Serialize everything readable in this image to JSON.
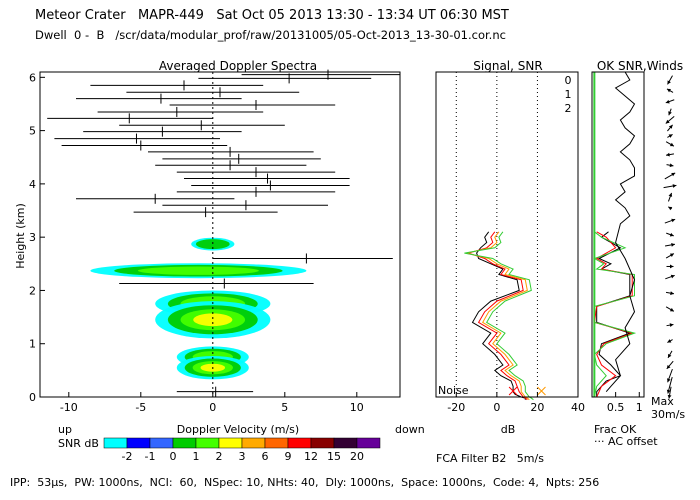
{
  "header": {
    "line1": "Meteor Crater   MAPR-449   Sat Oct 05 2013 13:30 - 13:34 UT 06:30 MST",
    "line2": "Dwell  0 -  B   /scr/data/modular_prof/raw/20131005/05-Oct-2013_13-30-01.cor.nc"
  },
  "footer": {
    "params": "IPP:  53μs,  PW: 1000ns,  NCI:  60,  NSpec: 10, NHts: 40,  Dly: 1000ns,  Space: 1000ns,  Code: 4,  Npts: 256",
    "filter": "FCA Filter B2   5m/s"
  },
  "colorbar": {
    "up": "up",
    "down": "down",
    "unit_label": "SNR dB",
    "ticks": [
      "-2",
      "-1",
      "0",
      "1",
      "2",
      "3",
      "6",
      "9",
      "12",
      "15",
      "20"
    ],
    "colors": [
      "#00ffff",
      "#0000ff",
      "#3366ff",
      "#00cc00",
      "#44ff00",
      "#ffff00",
      "#ffaa00",
      "#ff6600",
      "#ff0000",
      "#880000",
      "#330033",
      "#660099"
    ]
  },
  "chart_data": [
    {
      "type": "heatmap",
      "title": "Averaged Doppler Spectra",
      "xlabel": "Doppler Velocity (m/s)",
      "ylabel": "Height (km)",
      "xlim": [
        -12,
        13
      ],
      "ylim": [
        0,
        6.1
      ],
      "xticks": [
        -10,
        -5,
        0,
        5,
        10
      ],
      "yticks": [
        0,
        1,
        2,
        3,
        4,
        5,
        6
      ],
      "mean_velocity_bars": [
        {
          "h": 6.05,
          "v": 8.0,
          "lo": 2.0,
          "hi": 13.0
        },
        {
          "h": 5.98,
          "v": 5.3,
          "lo": -1.0,
          "hi": 11.0
        },
        {
          "h": 5.85,
          "v": -2.0,
          "lo": -8.5,
          "hi": 3.5
        },
        {
          "h": 5.72,
          "v": 0.5,
          "lo": -6.0,
          "hi": 6.0
        },
        {
          "h": 5.6,
          "v": -3.6,
          "lo": -9.5,
          "hi": 2.0
        },
        {
          "h": 5.48,
          "v": 3.0,
          "lo": -3.0,
          "hi": 8.5
        },
        {
          "h": 5.35,
          "v": -2.5,
          "lo": -8.0,
          "hi": 3.5
        },
        {
          "h": 5.23,
          "v": -5.8,
          "lo": -11.5,
          "hi": 0.0
        },
        {
          "h": 5.1,
          "v": -0.8,
          "lo": -6.5,
          "hi": 5.0
        },
        {
          "h": 4.98,
          "v": -3.5,
          "lo": -9.0,
          "hi": 2.0
        },
        {
          "h": 4.85,
          "v": -5.3,
          "lo": -11.0,
          "hi": 0.5
        },
        {
          "h": 4.72,
          "v": -5.0,
          "lo": -10.5,
          "hi": 1.0
        },
        {
          "h": 4.6,
          "v": 1.2,
          "lo": -4.5,
          "hi": 7.0
        },
        {
          "h": 4.47,
          "v": 1.8,
          "lo": -3.5,
          "hi": 7.5
        },
        {
          "h": 4.35,
          "v": 1.2,
          "lo": -4.0,
          "hi": 6.5
        },
        {
          "h": 4.22,
          "v": 3.0,
          "lo": -2.5,
          "hi": 8.5
        },
        {
          "h": 4.1,
          "v": 3.8,
          "lo": -2.0,
          "hi": 9.5
        },
        {
          "h": 3.97,
          "v": 4.0,
          "lo": -1.5,
          "hi": 9.5
        },
        {
          "h": 3.85,
          "v": 3.0,
          "lo": -2.5,
          "hi": 8.5
        },
        {
          "h": 3.72,
          "v": -4.0,
          "lo": -9.5,
          "hi": 1.5
        },
        {
          "h": 3.6,
          "v": 2.3,
          "lo": -3.5,
          "hi": 8.0
        },
        {
          "h": 3.47,
          "v": -0.5,
          "lo": -5.5,
          "hi": 4.5
        },
        {
          "h": 2.6,
          "v": 6.5,
          "lo": 0.0,
          "hi": 12.5
        },
        {
          "h": 2.13,
          "v": 0.8,
          "lo": -6.5,
          "hi": 7.0
        },
        {
          "h": 0.1,
          "v": 0.2,
          "lo": -2.5,
          "hi": 2.8
        }
      ],
      "echo_layers": [
        {
          "h": 2.87,
          "v": 0.0,
          "dh": 0.12,
          "dv": 1.5,
          "level": 1
        },
        {
          "h": 2.37,
          "v": -1.0,
          "dh": 0.14,
          "dv": 7.5,
          "level": 2
        },
        {
          "h": 1.75,
          "v": 0.0,
          "dh": 0.25,
          "dv": 4.0,
          "level": 2
        },
        {
          "h": 1.45,
          "v": 0.0,
          "dh": 0.35,
          "dv": 4.0,
          "level": 3
        },
        {
          "h": 0.75,
          "v": 0.0,
          "dh": 0.2,
          "dv": 2.5,
          "level": 2
        },
        {
          "h": 0.55,
          "v": 0.0,
          "dh": 0.22,
          "dv": 2.5,
          "level": 3
        }
      ]
    },
    {
      "type": "line",
      "title": "Signal, SNR",
      "xlabel": "dB",
      "xlim": [
        -30,
        40
      ],
      "xticks": [
        -20,
        0,
        20,
        40
      ],
      "noise_label": "Noise",
      "series": [
        {
          "name": "Signal",
          "color": "#000000",
          "x": [
            -4,
            -6,
            -5,
            -8,
            -10,
            -9,
            -3,
            3,
            1,
            10,
            11,
            -3,
            -9,
            -12,
            -3,
            -7,
            -1,
            3,
            -1,
            2,
            7,
            8,
            8,
            9,
            12,
            14,
            14
          ],
          "h": [
            3.1,
            3.0,
            2.9,
            2.8,
            2.7,
            2.6,
            2.5,
            2.4,
            2.3,
            2.2,
            2.0,
            1.8,
            1.6,
            1.4,
            1.2,
            1.0,
            0.8,
            0.6,
            0.5,
            0.4,
            0.3,
            0.2,
            0.1,
            0.05,
            0.0,
            -0.02,
            -0.05
          ]
        },
        {
          "name": "0",
          "color": "#ff0000",
          "x": [
            -1,
            -3,
            -2,
            -5,
            -14,
            -6,
            -2,
            4,
            2,
            12,
            13,
            0,
            -6,
            -9,
            0,
            -4,
            2,
            6,
            2,
            5,
            9,
            10,
            11,
            12,
            13,
            14,
            15
          ],
          "h": [
            3.1,
            3.0,
            2.9,
            2.8,
            2.7,
            2.6,
            2.5,
            2.4,
            2.3,
            2.2,
            2.0,
            1.8,
            1.6,
            1.4,
            1.2,
            1.0,
            0.8,
            0.6,
            0.5,
            0.4,
            0.3,
            0.2,
            0.1,
            0.05,
            0.0,
            -0.02,
            -0.05
          ]
        },
        {
          "name": "1",
          "color": "#ff9900",
          "x": [
            1,
            -1,
            0,
            -3,
            -15,
            -4,
            0,
            6,
            4,
            14,
            15,
            2,
            -4,
            -7,
            2,
            -2,
            4,
            8,
            4,
            7,
            11,
            12,
            12,
            13,
            14,
            15,
            16
          ],
          "h": [
            3.1,
            3.0,
            2.9,
            2.8,
            2.7,
            2.6,
            2.5,
            2.4,
            2.3,
            2.2,
            2.0,
            1.8,
            1.6,
            1.4,
            1.2,
            1.0,
            0.8,
            0.6,
            0.5,
            0.4,
            0.3,
            0.2,
            0.1,
            0.05,
            0.0,
            -0.02,
            -0.05
          ]
        },
        {
          "name": "2",
          "color": "#33cc33",
          "x": [
            3,
            1,
            2,
            -1,
            -16,
            -2,
            2,
            8,
            6,
            16,
            17,
            4,
            -2,
            -5,
            4,
            0,
            6,
            10,
            6,
            9,
            13,
            14,
            14,
            15,
            16,
            17,
            18
          ],
          "h": [
            3.1,
            3.0,
            2.9,
            2.8,
            2.7,
            2.6,
            2.5,
            2.4,
            2.3,
            2.2,
            2.0,
            1.8,
            1.6,
            1.4,
            1.2,
            1.0,
            0.8,
            0.6,
            0.5,
            0.4,
            0.3,
            0.2,
            0.1,
            0.05,
            0.0,
            -0.02,
            -0.05
          ]
        }
      ],
      "legend": [
        "0",
        "1",
        "2"
      ]
    },
    {
      "type": "line",
      "title": "OK SNR,Winds",
      "xlabel": "Frac OK",
      "xlim": [
        0,
        1.1
      ],
      "xticks": [
        "0.5",
        "1"
      ],
      "xtick_values": [
        0.5,
        1
      ],
      "note": "··· AC offset",
      "wind_scale": "Max\n30m/s",
      "frac_ok": [
        {
          "name": "black",
          "color": "#000000",
          "x": [
            0.35,
            0.2,
            0.6,
            0.15,
            0.4,
            0.2,
            0.8,
            0.8,
            0.1,
            0.1,
            0.8,
            0.2,
            0.15,
            0.4,
            0.6,
            0.3,
            0.2,
            0.1,
            0.1
          ],
          "h": [
            3.1,
            3.0,
            2.8,
            2.6,
            2.5,
            2.4,
            2.3,
            1.9,
            1.7,
            1.4,
            1.2,
            1.0,
            0.8,
            0.6,
            0.4,
            0.3,
            0.2,
            0.1,
            0.0
          ]
        },
        {
          "name": "red",
          "color": "#ff0000",
          "x": [
            0.1,
            0.3,
            0.5,
            0.1,
            0.3,
            0.2,
            0.85,
            0.85,
            0.1,
            0.05,
            0.85,
            0.25,
            0.1,
            0.2,
            0.5,
            0.2,
            0.1
          ],
          "h": [
            3.1,
            3.0,
            2.8,
            2.6,
            2.5,
            2.4,
            2.3,
            1.9,
            1.7,
            1.4,
            1.2,
            1.0,
            0.8,
            0.6,
            0.4,
            0.2,
            0.0
          ]
        },
        {
          "name": "green",
          "color": "#33cc33",
          "x": [
            0.05,
            0.2,
            0.7,
            0.05,
            0.25,
            0.1,
            0.9,
            0.9,
            0.05,
            0.05,
            0.9,
            0.3,
            0.05,
            0.1,
            0.3,
            0.1,
            0.05
          ],
          "h": [
            3.1,
            3.0,
            2.8,
            2.6,
            2.5,
            2.4,
            2.3,
            1.9,
            1.7,
            1.4,
            1.2,
            1.0,
            0.8,
            0.6,
            0.4,
            0.2,
            0.0
          ]
        }
      ],
      "ac_offset": {
        "x": [
          0.7,
          0.8,
          0.5,
          0.7,
          0.9,
          0.8,
          0.6,
          0.7,
          0.9,
          0.8,
          0.6,
          0.8,
          0.9,
          0.9,
          0.6,
          0.7,
          0.5,
          0.7,
          0.8,
          0.6,
          0.5,
          0.7,
          0.9,
          0.8,
          0.9,
          0.7,
          0.8,
          0.5,
          0.6,
          0.4,
          0.3
        ],
        "h": [
          6.1,
          5.95,
          5.8,
          5.65,
          5.5,
          5.35,
          5.2,
          5.05,
          4.9,
          4.75,
          4.6,
          4.45,
          4.3,
          4.15,
          4.0,
          3.85,
          3.7,
          3.55,
          3.4,
          3.25,
          2.9,
          2.6,
          2.2,
          1.9,
          1.6,
          1.3,
          1.0,
          0.7,
          0.4,
          0.2,
          0.1
        ]
      },
      "winds": [
        {
          "h": 5.95,
          "angle": 210,
          "len": 10
        },
        {
          "h": 5.75,
          "angle": 300,
          "len": 7
        },
        {
          "h": 5.55,
          "angle": 250,
          "len": 9
        },
        {
          "h": 5.35,
          "angle": 200,
          "len": 7
        },
        {
          "h": 5.2,
          "angle": 230,
          "len": 11
        },
        {
          "h": 5.05,
          "angle": 40,
          "len": 8
        },
        {
          "h": 4.9,
          "angle": 60,
          "len": 6
        },
        {
          "h": 4.75,
          "angle": 120,
          "len": 9
        },
        {
          "h": 4.55,
          "angle": 260,
          "len": 8
        },
        {
          "h": 4.35,
          "angle": 100,
          "len": 7
        },
        {
          "h": 4.15,
          "angle": 60,
          "len": 12
        },
        {
          "h": 3.95,
          "angle": 80,
          "len": 13
        },
        {
          "h": 3.75,
          "angle": 20,
          "len": 9
        },
        {
          "h": 3.55,
          "angle": 300,
          "len": 4
        },
        {
          "h": 3.3,
          "angle": 70,
          "len": 11
        },
        {
          "h": 3.05,
          "angle": 110,
          "len": 8
        },
        {
          "h": 2.85,
          "angle": 80,
          "len": 10
        },
        {
          "h": 2.65,
          "angle": 60,
          "len": 9
        },
        {
          "h": 2.45,
          "angle": 90,
          "len": 7
        },
        {
          "h": 2.25,
          "angle": 70,
          "len": 10
        },
        {
          "h": 1.95,
          "angle": 100,
          "len": 8
        },
        {
          "h": 1.65,
          "angle": 120,
          "len": 9
        },
        {
          "h": 1.35,
          "angle": 80,
          "len": 7
        },
        {
          "h": 1.05,
          "angle": 240,
          "len": 6
        },
        {
          "h": 0.8,
          "angle": 210,
          "len": 8
        },
        {
          "h": 0.6,
          "angle": 220,
          "len": 10
        },
        {
          "h": 0.4,
          "angle": 200,
          "len": 14
        },
        {
          "h": 0.22,
          "angle": 195,
          "len": 17
        },
        {
          "h": 0.08,
          "angle": 190,
          "len": 12
        }
      ]
    }
  ]
}
